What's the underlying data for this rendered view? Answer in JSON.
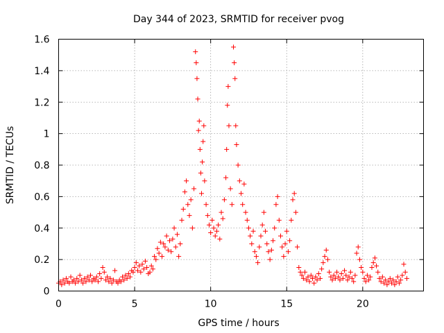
{
  "chart_data": {
    "type": "scatter",
    "title": "Day 344 of 2023, SRMTID for receiver pvog",
    "xlabel": "GPS time / hours",
    "ylabel": "SRMTID / TECUs",
    "xlim": [
      0,
      24
    ],
    "ylim": [
      0,
      1.6
    ],
    "xticks": [
      0,
      5,
      10,
      15,
      20
    ],
    "xtick_labels": [
      "0",
      "5",
      "10",
      "15",
      "20"
    ],
    "yticks": [
      0,
      0.2,
      0.4,
      0.6,
      0.8,
      1,
      1.2,
      1.4,
      1.6
    ],
    "ytick_labels": [
      "0",
      "0.2",
      "0.4",
      "0.6",
      "0.8",
      "1",
      "1.2",
      "1.4",
      "1.6"
    ],
    "grid": true,
    "marker": "+",
    "marker_color": "#ff0000",
    "series": [
      {
        "name": "SRMTID",
        "points": [
          [
            0.0,
            0.05
          ],
          [
            0.1,
            0.06
          ],
          [
            0.2,
            0.04
          ],
          [
            0.3,
            0.07
          ],
          [
            0.4,
            0.05
          ],
          [
            0.5,
            0.08
          ],
          [
            0.6,
            0.06
          ],
          [
            0.7,
            0.05
          ],
          [
            0.8,
            0.09
          ],
          [
            0.9,
            0.06
          ],
          [
            1.0,
            0.07
          ],
          [
            1.1,
            0.05
          ],
          [
            1.2,
            0.08
          ],
          [
            1.3,
            0.06
          ],
          [
            1.4,
            0.1
          ],
          [
            1.5,
            0.07
          ],
          [
            1.6,
            0.05
          ],
          [
            1.7,
            0.08
          ],
          [
            1.8,
            0.06
          ],
          [
            1.9,
            0.09
          ],
          [
            2.0,
            0.07
          ],
          [
            2.1,
            0.1
          ],
          [
            2.2,
            0.06
          ],
          [
            2.3,
            0.08
          ],
          [
            2.4,
            0.07
          ],
          [
            2.5,
            0.09
          ],
          [
            2.6,
            0.06
          ],
          [
            2.7,
            0.11
          ],
          [
            2.8,
            0.08
          ],
          [
            2.9,
            0.15
          ],
          [
            3.0,
            0.12
          ],
          [
            3.1,
            0.07
          ],
          [
            3.2,
            0.09
          ],
          [
            3.3,
            0.06
          ],
          [
            3.4,
            0.08
          ],
          [
            3.5,
            0.05
          ],
          [
            3.6,
            0.07
          ],
          [
            3.7,
            0.13
          ],
          [
            3.8,
            0.06
          ],
          [
            3.9,
            0.05
          ],
          [
            4.0,
            0.07
          ],
          [
            4.1,
            0.06
          ],
          [
            4.2,
            0.09
          ],
          [
            4.3,
            0.07
          ],
          [
            4.4,
            0.1
          ],
          [
            4.5,
            0.08
          ],
          [
            4.6,
            0.11
          ],
          [
            4.7,
            0.09
          ],
          [
            4.8,
            0.13
          ],
          [
            4.9,
            0.12
          ],
          [
            5.0,
            0.15
          ],
          [
            5.1,
            0.18
          ],
          [
            5.2,
            0.13
          ],
          [
            5.3,
            0.16
          ],
          [
            5.4,
            0.12
          ],
          [
            5.5,
            0.17
          ],
          [
            5.6,
            0.14
          ],
          [
            5.7,
            0.19
          ],
          [
            5.8,
            0.15
          ],
          [
            5.9,
            0.11
          ],
          [
            6.0,
            0.12
          ],
          [
            6.1,
            0.16
          ],
          [
            6.2,
            0.14
          ],
          [
            6.3,
            0.22
          ],
          [
            6.4,
            0.2
          ],
          [
            6.5,
            0.27
          ],
          [
            6.6,
            0.24
          ],
          [
            6.7,
            0.31
          ],
          [
            6.8,
            0.22
          ],
          [
            6.9,
            0.3
          ],
          [
            7.0,
            0.28
          ],
          [
            7.1,
            0.35
          ],
          [
            7.2,
            0.26
          ],
          [
            7.3,
            0.32
          ],
          [
            7.4,
            0.25
          ],
          [
            7.5,
            0.33
          ],
          [
            7.6,
            0.4
          ],
          [
            7.7,
            0.28
          ],
          [
            7.8,
            0.36
          ],
          [
            7.9,
            0.22
          ],
          [
            8.0,
            0.3
          ],
          [
            8.1,
            0.45
          ],
          [
            8.2,
            0.52
          ],
          [
            8.3,
            0.63
          ],
          [
            8.4,
            0.7
          ],
          [
            8.5,
            0.55
          ],
          [
            8.6,
            0.48
          ],
          [
            8.7,
            0.58
          ],
          [
            8.8,
            0.4
          ],
          [
            8.9,
            0.65
          ],
          [
            9.0,
            1.52
          ],
          [
            9.05,
            1.45
          ],
          [
            9.1,
            1.35
          ],
          [
            9.15,
            1.22
          ],
          [
            9.2,
            1.02
          ],
          [
            9.25,
            1.08
          ],
          [
            9.3,
            0.9
          ],
          [
            9.35,
            0.75
          ],
          [
            9.4,
            0.62
          ],
          [
            9.45,
            0.82
          ],
          [
            9.5,
            0.95
          ],
          [
            9.55,
            1.05
          ],
          [
            9.6,
            0.7
          ],
          [
            9.7,
            0.55
          ],
          [
            9.8,
            0.48
          ],
          [
            9.9,
            0.42
          ],
          [
            10.0,
            0.37
          ],
          [
            10.1,
            0.45
          ],
          [
            10.2,
            0.4
          ],
          [
            10.3,
            0.35
          ],
          [
            10.4,
            0.38
          ],
          [
            10.5,
            0.42
          ],
          [
            10.6,
            0.33
          ],
          [
            10.7,
            0.5
          ],
          [
            10.8,
            0.46
          ],
          [
            10.9,
            0.58
          ],
          [
            11.0,
            0.72
          ],
          [
            11.05,
            0.9
          ],
          [
            11.1,
            1.18
          ],
          [
            11.15,
            1.3
          ],
          [
            11.2,
            1.05
          ],
          [
            11.3,
            0.65
          ],
          [
            11.4,
            0.55
          ],
          [
            11.5,
            1.55
          ],
          [
            11.55,
            1.45
          ],
          [
            11.6,
            1.35
          ],
          [
            11.65,
            1.05
          ],
          [
            11.7,
            0.93
          ],
          [
            11.8,
            0.8
          ],
          [
            11.9,
            0.7
          ],
          [
            12.0,
            0.62
          ],
          [
            12.1,
            0.55
          ],
          [
            12.2,
            0.68
          ],
          [
            12.3,
            0.5
          ],
          [
            12.4,
            0.45
          ],
          [
            12.5,
            0.4
          ],
          [
            12.6,
            0.35
          ],
          [
            12.7,
            0.3
          ],
          [
            12.8,
            0.38
          ],
          [
            12.9,
            0.25
          ],
          [
            13.0,
            0.22
          ],
          [
            13.1,
            0.18
          ],
          [
            13.2,
            0.28
          ],
          [
            13.3,
            0.35
          ],
          [
            13.4,
            0.42
          ],
          [
            13.5,
            0.5
          ],
          [
            13.6,
            0.38
          ],
          [
            13.7,
            0.3
          ],
          [
            13.8,
            0.25
          ],
          [
            13.9,
            0.2
          ],
          [
            14.0,
            0.26
          ],
          [
            14.1,
            0.32
          ],
          [
            14.2,
            0.4
          ],
          [
            14.3,
            0.55
          ],
          [
            14.4,
            0.6
          ],
          [
            14.5,
            0.45
          ],
          [
            14.6,
            0.35
          ],
          [
            14.7,
            0.28
          ],
          [
            14.8,
            0.22
          ],
          [
            14.9,
            0.3
          ],
          [
            15.0,
            0.38
          ],
          [
            15.1,
            0.25
          ],
          [
            15.2,
            0.32
          ],
          [
            15.3,
            0.45
          ],
          [
            15.4,
            0.58
          ],
          [
            15.5,
            0.62
          ],
          [
            15.6,
            0.5
          ],
          [
            15.7,
            0.28
          ],
          [
            15.8,
            0.15
          ],
          [
            15.9,
            0.12
          ],
          [
            16.0,
            0.1
          ],
          [
            16.1,
            0.08
          ],
          [
            16.2,
            0.12
          ],
          [
            16.3,
            0.07
          ],
          [
            16.4,
            0.09
          ],
          [
            16.5,
            0.06
          ],
          [
            16.6,
            0.1
          ],
          [
            16.7,
            0.08
          ],
          [
            16.8,
            0.05
          ],
          [
            16.9,
            0.09
          ],
          [
            17.0,
            0.07
          ],
          [
            17.1,
            0.11
          ],
          [
            17.2,
            0.08
          ],
          [
            17.3,
            0.14
          ],
          [
            17.4,
            0.18
          ],
          [
            17.5,
            0.22
          ],
          [
            17.6,
            0.26
          ],
          [
            17.7,
            0.2
          ],
          [
            17.8,
            0.12
          ],
          [
            17.9,
            0.09
          ],
          [
            18.0,
            0.07
          ],
          [
            18.1,
            0.1
          ],
          [
            18.2,
            0.08
          ],
          [
            18.3,
            0.12
          ],
          [
            18.4,
            0.09
          ],
          [
            18.5,
            0.07
          ],
          [
            18.6,
            0.11
          ],
          [
            18.7,
            0.08
          ],
          [
            18.8,
            0.13
          ],
          [
            18.9,
            0.1
          ],
          [
            19.0,
            0.07
          ],
          [
            19.1,
            0.09
          ],
          [
            19.2,
            0.12
          ],
          [
            19.3,
            0.08
          ],
          [
            19.4,
            0.06
          ],
          [
            19.5,
            0.1
          ],
          [
            19.6,
            0.24
          ],
          [
            19.7,
            0.28
          ],
          [
            19.8,
            0.2
          ],
          [
            19.9,
            0.15
          ],
          [
            20.0,
            0.12
          ],
          [
            20.1,
            0.08
          ],
          [
            20.2,
            0.06
          ],
          [
            20.3,
            0.1
          ],
          [
            20.4,
            0.07
          ],
          [
            20.5,
            0.09
          ],
          [
            20.6,
            0.15
          ],
          [
            20.7,
            0.18
          ],
          [
            20.8,
            0.21
          ],
          [
            20.9,
            0.16
          ],
          [
            21.0,
            0.12
          ],
          [
            21.1,
            0.08
          ],
          [
            21.2,
            0.06
          ],
          [
            21.3,
            0.09
          ],
          [
            21.4,
            0.05
          ],
          [
            21.5,
            0.07
          ],
          [
            21.6,
            0.04
          ],
          [
            21.7,
            0.06
          ],
          [
            21.8,
            0.08
          ],
          [
            21.9,
            0.05
          ],
          [
            22.0,
            0.07
          ],
          [
            22.1,
            0.04
          ],
          [
            22.2,
            0.06
          ],
          [
            22.3,
            0.09
          ],
          [
            22.4,
            0.05
          ],
          [
            22.5,
            0.07
          ],
          [
            22.6,
            0.1
          ],
          [
            22.7,
            0.17
          ],
          [
            22.8,
            0.12
          ],
          [
            22.9,
            0.08
          ]
        ]
      }
    ]
  }
}
